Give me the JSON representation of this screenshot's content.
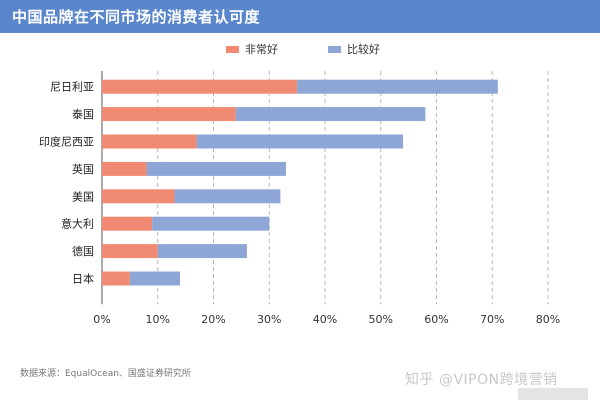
{
  "title": "中国品牌在不同市场的消费者认可度",
  "source": "数据来源：EqualOcean、国盛证券研究所",
  "watermark": "知乎 @VIPON跨境营销",
  "chart_data": {
    "type": "bar",
    "orientation": "horizontal",
    "stacked": true,
    "categories": [
      "尼日利亚",
      "泰国",
      "印度尼西亚",
      "英国",
      "美国",
      "意大利",
      "德国",
      "日本"
    ],
    "series": [
      {
        "name": "非常好",
        "color": "#f08a72",
        "values": [
          0.35,
          0.24,
          0.17,
          0.08,
          0.13,
          0.09,
          0.1,
          0.05
        ]
      },
      {
        "name": "比较好",
        "color": "#8ea6d6",
        "values": [
          0.36,
          0.34,
          0.37,
          0.25,
          0.19,
          0.21,
          0.16,
          0.09
        ]
      }
    ],
    "x_ticks": [
      "0%",
      "10%",
      "20%",
      "30%",
      "40%",
      "50%",
      "60%",
      "70%",
      "80%"
    ],
    "xlim": [
      0,
      0.8
    ],
    "grid": "vertical dashed",
    "legend_position": "top-center"
  }
}
